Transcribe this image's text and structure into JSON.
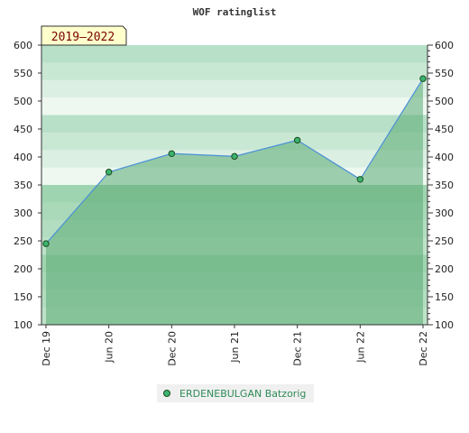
{
  "chart_data": {
    "type": "area",
    "title": "WOF ratinglist",
    "period_label": "2019–2022",
    "ylim": [
      100,
      600
    ],
    "yticks": [
      "100",
      "150",
      "200",
      "250",
      "300",
      "350",
      "400",
      "450",
      "500",
      "550",
      "600"
    ],
    "x_labels": [
      "Dec 19",
      "Jun 20",
      "Dec 20",
      "Jun 21",
      "Dec 21",
      "Jun 22",
      "Dec 22"
    ],
    "series": [
      {
        "name": "ERDENEBULGAN Batzorig",
        "points": [
          {
            "x": "Dec 19",
            "y": 245
          },
          {
            "x": "Jun 20",
            "y": 373
          },
          {
            "x": "Dec 20",
            "y": 406
          },
          {
            "x": "Jun 21",
            "y": 401
          },
          {
            "x": "Dec 21",
            "y": 430
          },
          {
            "x": "Jun 22",
            "y": 360
          },
          {
            "x": "Dec 22",
            "y": 540
          }
        ]
      }
    ],
    "legend": "bottom-center",
    "colors": {
      "line": "#4a90d9",
      "area": "#5aaa72",
      "marker": "#3cb371",
      "period_box": "#ffffcc"
    }
  }
}
